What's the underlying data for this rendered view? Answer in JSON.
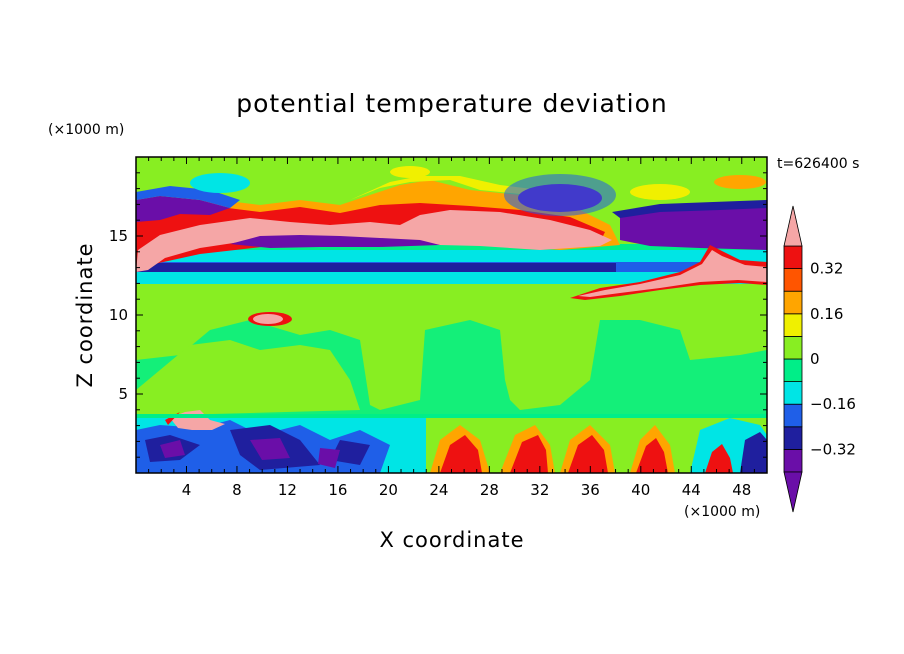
{
  "chart_data": {
    "type": "heatmap",
    "title": "potential temperature deviation",
    "xlabel": "X coordinate",
    "ylabel": "Z coordinate",
    "x_unit": "(×1000 m)",
    "y_unit": "(×1000 m)",
    "time_label": "t=626400 s",
    "xlim": [
      0,
      50
    ],
    "ylim": [
      0,
      20
    ],
    "x_ticks": [
      4,
      8,
      12,
      16,
      20,
      24,
      28,
      32,
      36,
      40,
      44,
      48
    ],
    "y_ticks": [
      5,
      10,
      15
    ],
    "colorbar": {
      "levels": [
        -0.4,
        -0.32,
        -0.24,
        -0.16,
        -0.08,
        0,
        0.08,
        0.16,
        0.24,
        0.32,
        0.4
      ],
      "colors": [
        "#6a0ea8",
        "#1f1f9e",
        "#1f5fe8",
        "#00e5e5",
        "#00ee88",
        "#88ee22",
        "#f0f000",
        "#ffa500",
        "#ff5500",
        "#ee1111"
      ],
      "under_color": "#6a0ea8",
      "over_color": "#f5a6a6",
      "tick_labels": [
        {
          "value": -0.32,
          "label": "−0.32"
        },
        {
          "value": -0.16,
          "label": "−0.16"
        },
        {
          "value": 0,
          "label": "0"
        },
        {
          "value": 0.16,
          "label": "0.16"
        },
        {
          "value": 0.32,
          "label": "0.32"
        }
      ]
    },
    "field": [
      {
        "x": [
          0,
          50
        ],
        "z": [
          0,
          20
        ],
        "value": 0.04
      },
      {
        "x": [
          0,
          50
        ],
        "z": [
          3.4,
          10.5
        ],
        "value": 0.02
      },
      {
        "x": [
          0,
          50
        ],
        "z": [
          17.5,
          20
        ],
        "value": 0.06
      },
      {
        "x": [
          0,
          50
        ],
        "z": [
          11.6,
          12.2
        ],
        "value": -0.1
      },
      {
        "x": [
          0,
          50
        ],
        "z": [
          12.2,
          12.8
        ],
        "value": -0.36
      },
      {
        "x": [
          0,
          50
        ],
        "z": [
          12.8,
          13.3
        ],
        "value": -0.2
      },
      {
        "x": [
          0,
          50
        ],
        "z": [
          13.3,
          14.0
        ],
        "value": -0.12
      },
      {
        "x": [
          0,
          30
        ],
        "z": [
          14.0,
          17.5
        ],
        "value": 0.2
      },
      {
        "x": [
          0,
          30
        ],
        "z": [
          13.3,
          15.8
        ],
        "value": 0.45
      },
      {
        "x": [
          8,
          18
        ],
        "z": [
          14.2,
          15.0
        ],
        "value": -0.36
      },
      {
        "x": [
          0,
          6
        ],
        "z": [
          15.8,
          17.5
        ],
        "value": -0.36
      },
      {
        "x": [
          24,
          38
        ],
        "z": [
          14.5,
          17.0
        ],
        "value": 0.45
      },
      {
        "x": [
          30,
          36
        ],
        "z": [
          16.5,
          18.5
        ],
        "value": -0.36
      },
      {
        "x": [
          38,
          50
        ],
        "z": [
          14.0,
          16.5
        ],
        "value": -0.36
      },
      {
        "x": [
          34,
          50
        ],
        "z": [
          11.0,
          14.0
        ],
        "value": 0.45
      },
      {
        "x": [
          8,
          12
        ],
        "z": [
          9.4,
          10.2
        ],
        "value": 0.45
      },
      {
        "x": [
          4,
          50
        ],
        "z": [
          4.0,
          7.5
        ],
        "value": 0.06
      },
      {
        "x": [
          20,
          40
        ],
        "z": [
          5.5,
          9.5
        ],
        "value": 0.0
      },
      {
        "x": [
          0,
          22
        ],
        "z": [
          0,
          3.4
        ],
        "value": -0.3
      },
      {
        "x": [
          0,
          6
        ],
        "z": [
          2.7,
          3.4
        ],
        "value": 0.45
      },
      {
        "x": [
          22,
          50
        ],
        "z": [
          0,
          3.4
        ],
        "value": 0.3
      },
      {
        "x": [
          40,
          50
        ],
        "z": [
          0.5,
          3.4
        ],
        "value": -0.2
      }
    ]
  }
}
